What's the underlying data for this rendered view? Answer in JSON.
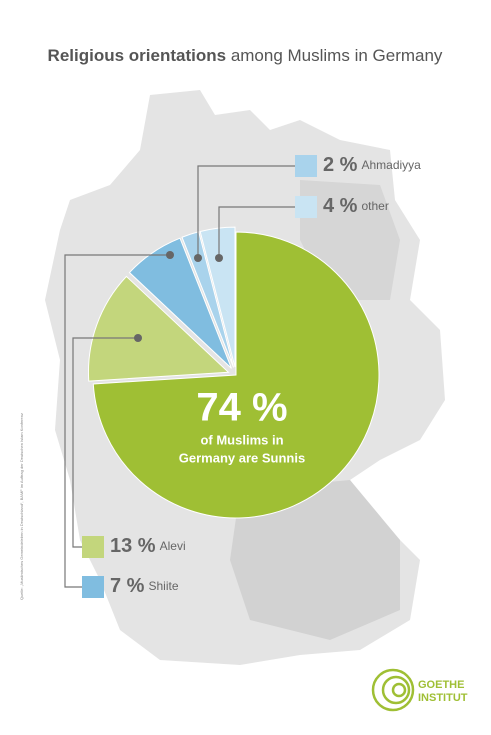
{
  "chart_data": {
    "type": "pie",
    "title_bold": "Religious orientations",
    "title_rest": "among Muslims in Germany",
    "categories": [
      null,
      "Alevi",
      "Shiite",
      "Ahmadiyya",
      "other"
    ],
    "values": [
      74,
      13,
      7,
      2,
      4
    ],
    "value_labels": [
      "74 %",
      "13 %",
      "7 %",
      "2 %",
      "4 %"
    ],
    "colors": [
      "#9fbf34",
      "#c3d67c",
      "#80bde0",
      "#a9d3ec",
      "#c9e4f3"
    ],
    "center_text": [
      "of Muslims in",
      "Germany are Sunnis"
    ],
    "source": "Quelle: „Muslimisches Gemeindeleben in Deutschland“, BAMF im Auftrag der Deutschen Islam Konferenz",
    "logo": [
      "GOETHE",
      "INSTITUT"
    ]
  }
}
